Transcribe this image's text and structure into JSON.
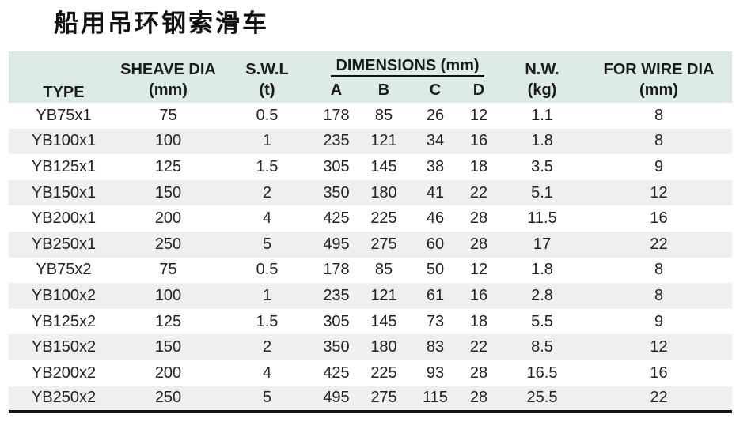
{
  "title": "船用吊环钢索滑车",
  "table": {
    "header": {
      "type": "TYPE",
      "sheave_dia": {
        "line1": "SHEAVE DIA",
        "line2": "(mm)"
      },
      "swl": {
        "line1": "S.W.L",
        "line2": "(t)"
      },
      "dimensions": {
        "title": "DIMENSIONS (mm)",
        "sub": [
          "A",
          "B",
          "C",
          "D"
        ]
      },
      "net_weight": {
        "line1": "N.W.",
        "line2": "(kg)"
      },
      "wire_dia": {
        "line1": "FOR WIRE DIA",
        "line2": "(mm)"
      }
    },
    "rows": [
      [
        "YB75x1",
        "75",
        "0.5",
        "178",
        "85",
        "26",
        "12",
        "1.1",
        "8"
      ],
      [
        "YB100x1",
        "100",
        "1",
        "235",
        "121",
        "34",
        "16",
        "1.8",
        "8"
      ],
      [
        "YB125x1",
        "125",
        "1.5",
        "305",
        "145",
        "38",
        "18",
        "3.5",
        "9"
      ],
      [
        "YB150x1",
        "150",
        "2",
        "350",
        "180",
        "41",
        "22",
        "5.1",
        "12"
      ],
      [
        "YB200x1",
        "200",
        "4",
        "425",
        "225",
        "46",
        "28",
        "11.5",
        "16"
      ],
      [
        "YB250x1",
        "250",
        "5",
        "495",
        "275",
        "60",
        "28",
        "17",
        "22"
      ],
      [
        "YB75x2",
        "75",
        "0.5",
        "178",
        "85",
        "50",
        "12",
        "1.8",
        "8"
      ],
      [
        "YB100x2",
        "100",
        "1",
        "235",
        "121",
        "61",
        "16",
        "2.8",
        "8"
      ],
      [
        "YB125x2",
        "125",
        "1.5",
        "305",
        "145",
        "73",
        "18",
        "5.5",
        "9"
      ],
      [
        "YB150x2",
        "150",
        "2",
        "350",
        "180",
        "83",
        "22",
        "8.5",
        "12"
      ],
      [
        "YB200x2",
        "200",
        "4",
        "425",
        "225",
        "93",
        "28",
        "16.5",
        "16"
      ],
      [
        "YB250x2",
        "250",
        "5",
        "495",
        "275",
        "115",
        "28",
        "25.5",
        "22"
      ]
    ]
  },
  "colors": {
    "header_bg": "#dcebe3",
    "stripe_bg": "#efefef",
    "bottom_border": "#111111"
  }
}
